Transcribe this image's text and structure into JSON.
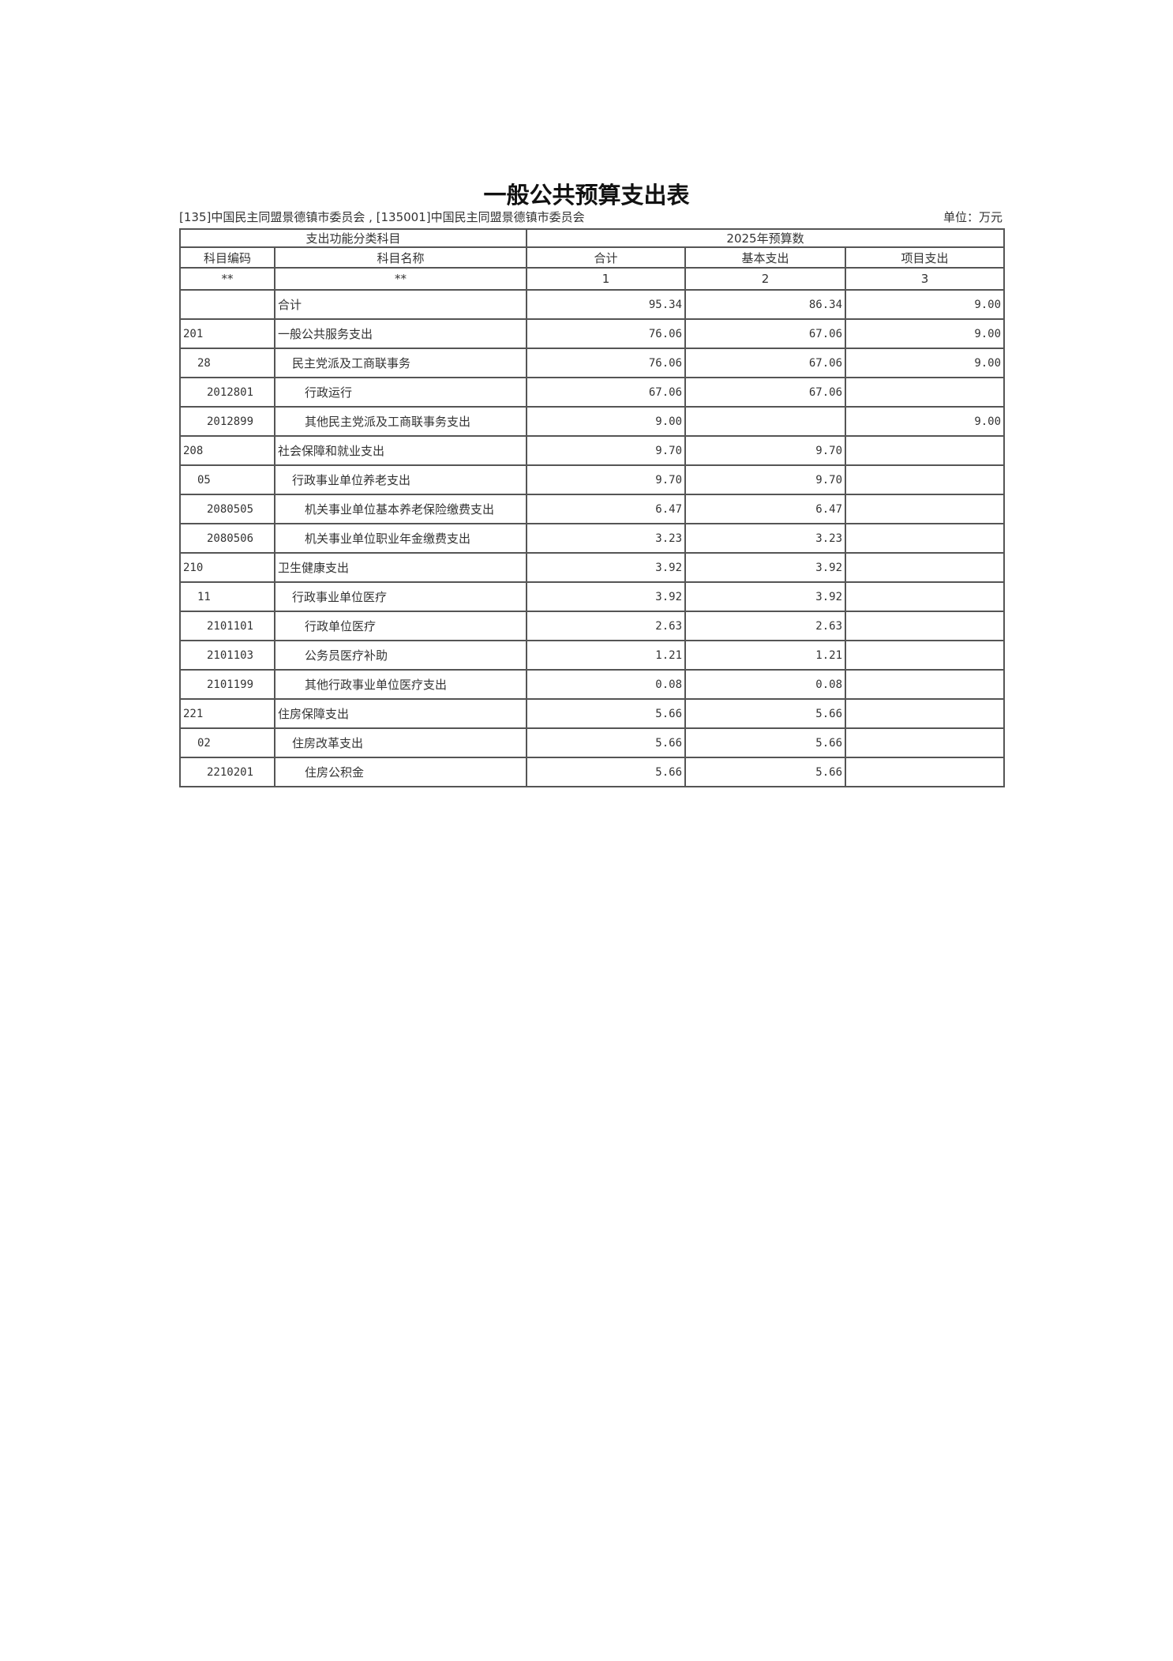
{
  "title": "一般公共预算支出表",
  "subtitle": "[135]中国民主同盟景德镇市委员会 , [135001]中国民主同盟景德镇市委员会",
  "unit": "单位：万元",
  "header": {
    "group_left": "支出功能分类科目",
    "group_right": "2025年预算数",
    "columns": [
      "科目编码",
      "科目名称",
      "合计",
      "基本支出",
      "项目支出"
    ],
    "index_row": [
      "**",
      "**",
      "1",
      "2",
      "3"
    ]
  },
  "rows": [
    {
      "code": "",
      "name": "合计",
      "level": 0,
      "total": "95.34",
      "basic": "86.34",
      "project": "9.00"
    },
    {
      "code": "201",
      "name": "一般公共服务支出",
      "level": 0,
      "total": "76.06",
      "basic": "67.06",
      "project": "9.00"
    },
    {
      "code": "28",
      "name": "民主党派及工商联事务",
      "level": 1,
      "total": "76.06",
      "basic": "67.06",
      "project": "9.00"
    },
    {
      "code": "2012801",
      "name": "行政运行",
      "level": 2,
      "total": "67.06",
      "basic": "67.06",
      "project": ""
    },
    {
      "code": "2012899",
      "name": "其他民主党派及工商联事务支出",
      "level": 2,
      "total": "9.00",
      "basic": "",
      "project": "9.00"
    },
    {
      "code": "208",
      "name": "社会保障和就业支出",
      "level": 0,
      "total": "9.70",
      "basic": "9.70",
      "project": ""
    },
    {
      "code": "05",
      "name": "行政事业单位养老支出",
      "level": 1,
      "total": "9.70",
      "basic": "9.70",
      "project": ""
    },
    {
      "code": "2080505",
      "name": "机关事业单位基本养老保险缴费支出",
      "level": 2,
      "total": "6.47",
      "basic": "6.47",
      "project": ""
    },
    {
      "code": "2080506",
      "name": "机关事业单位职业年金缴费支出",
      "level": 2,
      "total": "3.23",
      "basic": "3.23",
      "project": ""
    },
    {
      "code": "210",
      "name": "卫生健康支出",
      "level": 0,
      "total": "3.92",
      "basic": "3.92",
      "project": ""
    },
    {
      "code": "11",
      "name": "行政事业单位医疗",
      "level": 1,
      "total": "3.92",
      "basic": "3.92",
      "project": ""
    },
    {
      "code": "2101101",
      "name": "行政单位医疗",
      "level": 2,
      "total": "2.63",
      "basic": "2.63",
      "project": ""
    },
    {
      "code": "2101103",
      "name": "公务员医疗补助",
      "level": 2,
      "total": "1.21",
      "basic": "1.21",
      "project": ""
    },
    {
      "code": "2101199",
      "name": "其他行政事业单位医疗支出",
      "level": 2,
      "total": "0.08",
      "basic": "0.08",
      "project": ""
    },
    {
      "code": "221",
      "name": "住房保障支出",
      "level": 0,
      "total": "5.66",
      "basic": "5.66",
      "project": ""
    },
    {
      "code": "02",
      "name": "住房改革支出",
      "level": 1,
      "total": "5.66",
      "basic": "5.66",
      "project": ""
    },
    {
      "code": "2210201",
      "name": "住房公积金",
      "level": 2,
      "total": "5.66",
      "basic": "5.66",
      "project": ""
    }
  ]
}
